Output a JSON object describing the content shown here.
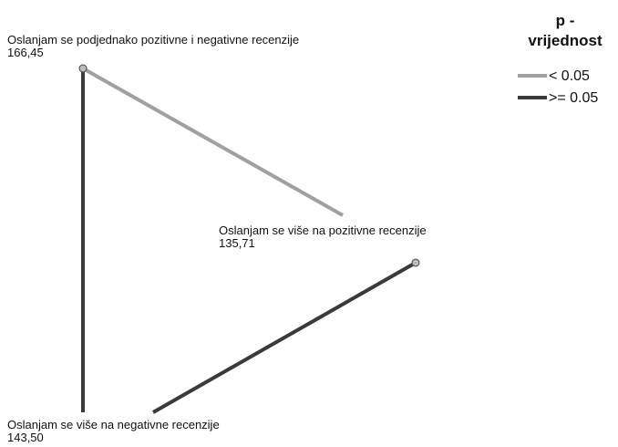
{
  "nodes": [
    {
      "label": "Oslanjam se podjednako pozitivne i negativne recenzije",
      "value": "166,45"
    },
    {
      "label": "Oslanjam se više na pozitivne recenzije",
      "value": "135,71"
    },
    {
      "label": "Oslanjam se više na negativne recenzije",
      "value": "143,50"
    }
  ],
  "legend": {
    "title": [
      "p -",
      "vrijednost"
    ],
    "items": [
      {
        "label": "< 0.05",
        "color": "#a0a0a0"
      },
      {
        "label": ">= 0.05",
        "color": "#3a3a3a"
      }
    ]
  }
}
